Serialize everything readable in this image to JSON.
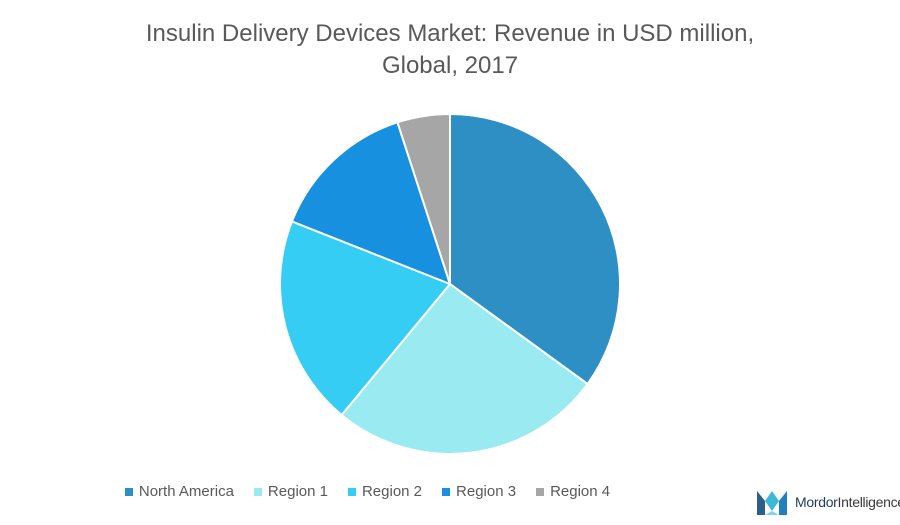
{
  "header": {
    "title_line1": "Insulin Delivery Devices Market: Revenue in USD million,",
    "title_line2": "Global, 2017"
  },
  "chart_data": {
    "type": "pie",
    "title": "Insulin Delivery Devices Market: Revenue in USD million, Global, 2017",
    "categories": [
      "North America",
      "Region 1",
      "Region 2",
      "Region 3",
      "Region 4"
    ],
    "values": [
      35,
      26,
      20,
      14,
      5
    ],
    "colors": [
      "#2e8fc4",
      "#9aeaf2",
      "#36cdf5",
      "#1890e0",
      "#a6a6a6"
    ],
    "legend_position": "bottom"
  },
  "brand": {
    "name_part1": "Mordor",
    "name_part2": "Intelligence"
  }
}
